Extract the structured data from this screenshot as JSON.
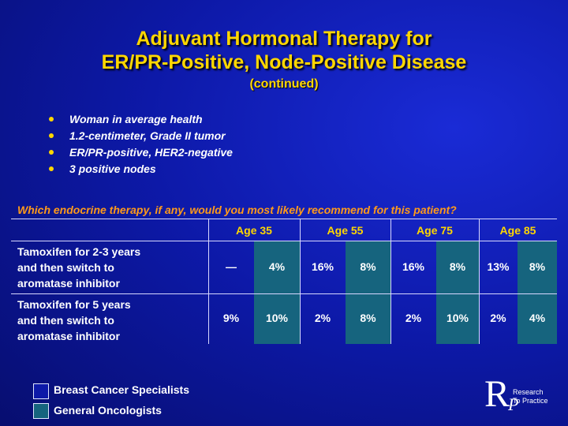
{
  "title_line1": "Adjuvant Hormonal Therapy for",
  "title_line2": "ER/PR-Positive, Node-Positive Disease",
  "subtitle": "(continued)",
  "bullets": [
    "Woman in average health",
    "1.2-centimeter, Grade II tumor",
    "ER/PR-positive, HER2-negative",
    "3 positive nodes"
  ],
  "question": "Which endocrine therapy, if any, would you most likely recommend for this patient?",
  "legend": {
    "specialists": "Breast Cancer Specialists",
    "oncologists": "General Oncologists"
  },
  "colors": {
    "title": "#ffd700",
    "question": "#ff9a1a",
    "specialists_fill": "#0d19a8",
    "oncologists_fill": "#16647e"
  },
  "logo": {
    "mark": "R",
    "mark_sub": "P",
    "line1": "Research",
    "line2": "To Practice"
  },
  "chart_data": {
    "type": "table",
    "columns": [
      "Age 35",
      "Age 55",
      "Age 75",
      "Age 85"
    ],
    "series": [
      {
        "name": "Breast Cancer Specialists"
      },
      {
        "name": "General Oncologists"
      }
    ],
    "rows": [
      {
        "label_lines": [
          "Tamoxifen for 2-3 years",
          "and then switch to",
          "aromatase inhibitor"
        ],
        "values": [
          [
            "—",
            "4%"
          ],
          [
            "16%",
            "8%"
          ],
          [
            "16%",
            "8%"
          ],
          [
            "13%",
            "8%"
          ]
        ]
      },
      {
        "label_lines": [
          "Tamoxifen for 5 years",
          "and then switch to",
          "aromatase inhibitor"
        ],
        "values": [
          [
            "9%",
            "10%"
          ],
          [
            "2%",
            "8%"
          ],
          [
            "2%",
            "10%"
          ],
          [
            "2%",
            "4%"
          ]
        ]
      }
    ]
  }
}
